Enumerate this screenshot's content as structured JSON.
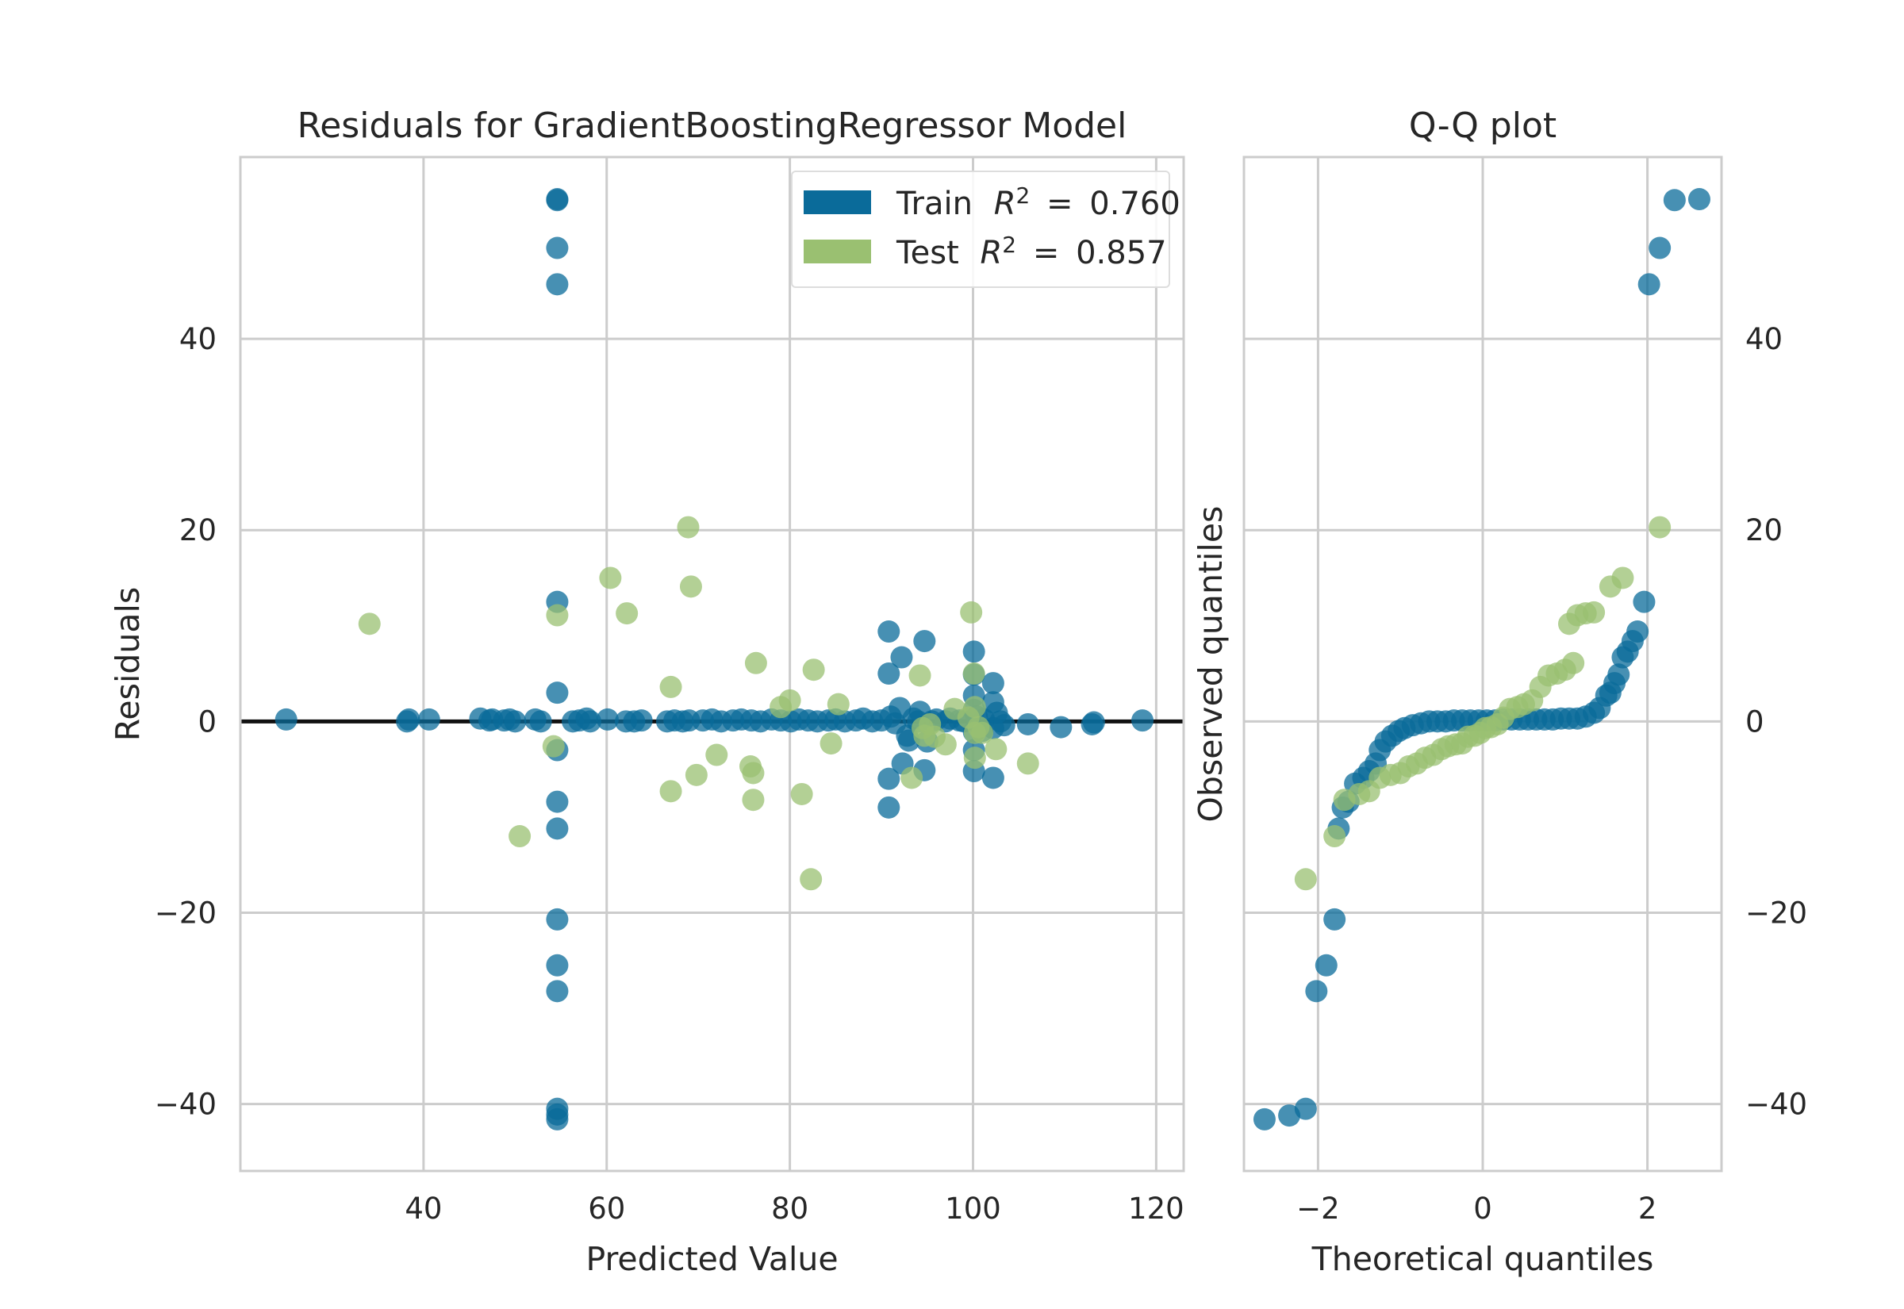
{
  "chart_data": [
    {
      "type": "scatter",
      "title": "Residuals for GradientBoostingRegressor Model",
      "xlabel": "Predicted Value",
      "ylabel": "Residuals",
      "xlim": [
        20,
        123
      ],
      "ylim": [
        -47,
        59
      ],
      "xticks": [
        40,
        60,
        80,
        100,
        120
      ],
      "yticks": [
        -40,
        -20,
        0,
        20,
        40
      ],
      "grid": true,
      "zero_line": 0,
      "legend": {
        "placement": "top-right",
        "entries": [
          {
            "prefix": "Train",
            "r2": "0.760",
            "color": "#0a6b9a"
          },
          {
            "prefix": "Test",
            "r2": "0.857",
            "color": "#9ac071"
          }
        ]
      },
      "series": [
        {
          "name": "Train",
          "color": "#0a6b9a",
          "points": [
            [
              25.0,
              0.2
            ],
            [
              38.2,
              0.0
            ],
            [
              38.4,
              0.2
            ],
            [
              40.6,
              0.2
            ],
            [
              46.2,
              0.3
            ],
            [
              47.2,
              0.1
            ],
            [
              47.5,
              0.2
            ],
            [
              48.8,
              0.1
            ],
            [
              49.4,
              0.2
            ],
            [
              50.0,
              0.0
            ],
            [
              52.2,
              0.2
            ],
            [
              52.8,
              0.0
            ],
            [
              54.6,
              54.5
            ],
            [
              54.6,
              54.6
            ],
            [
              54.6,
              49.5
            ],
            [
              54.6,
              45.7
            ],
            [
              54.6,
              12.5
            ],
            [
              54.6,
              3.0
            ],
            [
              54.6,
              -3.0
            ],
            [
              54.6,
              -8.4
            ],
            [
              54.6,
              -11.2
            ],
            [
              54.6,
              -20.7
            ],
            [
              54.6,
              -25.5
            ],
            [
              54.6,
              -28.2
            ],
            [
              54.6,
              -40.5
            ],
            [
              54.6,
              -41.1
            ],
            [
              54.6,
              -41.6
            ],
            [
              56.3,
              0.0
            ],
            [
              57.0,
              0.1
            ],
            [
              57.8,
              0.3
            ],
            [
              58.2,
              0.0
            ],
            [
              60.1,
              0.2
            ],
            [
              62.1,
              0.0
            ],
            [
              63.0,
              0.0
            ],
            [
              63.8,
              0.1
            ],
            [
              66.6,
              0.0
            ],
            [
              67.4,
              0.1
            ],
            [
              68.3,
              0.0
            ],
            [
              69.0,
              0.1
            ],
            [
              70.5,
              0.1
            ],
            [
              71.5,
              0.2
            ],
            [
              72.5,
              0.0
            ],
            [
              73.8,
              0.1
            ],
            [
              74.7,
              0.2
            ],
            [
              75.8,
              0.1
            ],
            [
              76.8,
              0.0
            ],
            [
              78.0,
              0.2
            ],
            [
              79.0,
              0.1
            ],
            [
              80.1,
              0.0
            ],
            [
              81.0,
              0.2
            ],
            [
              82.0,
              0.1
            ],
            [
              83.0,
              0.0
            ],
            [
              84.2,
              0.1
            ],
            [
              85.0,
              0.2
            ],
            [
              86.0,
              0.0
            ],
            [
              87.2,
              0.1
            ],
            [
              88.0,
              0.3
            ],
            [
              89.0,
              0.0
            ],
            [
              90.0,
              0.1
            ],
            [
              90.8,
              9.4
            ],
            [
              90.8,
              5.0
            ],
            [
              90.8,
              -6.0
            ],
            [
              90.8,
              -9.0
            ],
            [
              91.0,
              0.5
            ],
            [
              91.5,
              -0.2
            ],
            [
              92.0,
              1.4
            ],
            [
              92.2,
              6.7
            ],
            [
              92.3,
              -4.4
            ],
            [
              92.8,
              -1.5
            ],
            [
              93.0,
              -2.0
            ],
            [
              93.5,
              0.3
            ],
            [
              94.0,
              0.0
            ],
            [
              94.2,
              1.0
            ],
            [
              94.7,
              8.4
            ],
            [
              94.7,
              -5.1
            ],
            [
              95.0,
              -2.1
            ],
            [
              95.5,
              0.0
            ],
            [
              96.0,
              0.2
            ],
            [
              97.0,
              0.0
            ],
            [
              97.5,
              0.3
            ],
            [
              98.5,
              0.1
            ],
            [
              99.0,
              0.0
            ],
            [
              100.1,
              7.3
            ],
            [
              100.1,
              4.9
            ],
            [
              100.1,
              2.7
            ],
            [
              100.1,
              1.2
            ],
            [
              100.1,
              -1.1
            ],
            [
              100.1,
              -3.0
            ],
            [
              100.1,
              -5.2
            ],
            [
              100.4,
              0.5
            ],
            [
              101.0,
              -1.0
            ],
            [
              101.2,
              0.2
            ],
            [
              102.2,
              4.0
            ],
            [
              102.2,
              2.0
            ],
            [
              102.2,
              -0.7
            ],
            [
              102.2,
              -5.9
            ],
            [
              102.6,
              0.9
            ],
            [
              103.0,
              0.0
            ],
            [
              103.4,
              -0.4
            ],
            [
              106.0,
              -0.3
            ],
            [
              109.6,
              -0.6
            ],
            [
              113.0,
              -0.3
            ],
            [
              113.2,
              -0.1
            ],
            [
              118.5,
              0.1
            ]
          ]
        },
        {
          "name": "Test",
          "color": "#9ac071",
          "points": [
            [
              34.1,
              10.2
            ],
            [
              50.5,
              -12.0
            ],
            [
              54.2,
              -2.6
            ],
            [
              54.6,
              11.1
            ],
            [
              60.4,
              15.0
            ],
            [
              62.2,
              11.3
            ],
            [
              67.0,
              3.6
            ],
            [
              67.0,
              -7.3
            ],
            [
              68.9,
              20.3
            ],
            [
              69.2,
              14.1
            ],
            [
              69.8,
              -5.6
            ],
            [
              72.0,
              -3.5
            ],
            [
              75.7,
              -4.7
            ],
            [
              76.0,
              -5.4
            ],
            [
              76.0,
              -8.2
            ],
            [
              76.3,
              6.1
            ],
            [
              79.0,
              1.5
            ],
            [
              80.0,
              2.2
            ],
            [
              81.3,
              -7.6
            ],
            [
              82.3,
              -16.5
            ],
            [
              82.6,
              5.4
            ],
            [
              84.5,
              -2.3
            ],
            [
              85.3,
              1.8
            ],
            [
              93.3,
              -5.9
            ],
            [
              94.2,
              4.8
            ],
            [
              94.5,
              -0.7
            ],
            [
              94.7,
              -1.5
            ],
            [
              95.3,
              -0.3
            ],
            [
              95.8,
              -1.6
            ],
            [
              97.0,
              -2.4
            ],
            [
              98.0,
              1.3
            ],
            [
              99.5,
              0.4
            ],
            [
              99.8,
              11.4
            ],
            [
              100.1,
              5.0
            ],
            [
              100.2,
              1.5
            ],
            [
              100.2,
              -1.2
            ],
            [
              100.2,
              -3.8
            ],
            [
              100.6,
              -0.6
            ],
            [
              102.5,
              -2.9
            ],
            [
              106.0,
              -4.4
            ],
            [
              101.0,
              -1.2
            ]
          ]
        }
      ]
    },
    {
      "type": "scatter",
      "title": "Q-Q plot",
      "xlabel": "Theoretical quantiles",
      "ylabel": "Observed quantiles",
      "xlim": [
        -2.9,
        2.9
      ],
      "ylim": [
        -47,
        59
      ],
      "xticks": [
        -2,
        0,
        2
      ],
      "yticks": [
        -40,
        -20,
        0,
        20,
        40
      ],
      "grid": true,
      "series": [
        {
          "name": "Train",
          "color": "#0a6b9a",
          "points": [
            [
              -2.65,
              -41.6
            ],
            [
              -2.35,
              -41.2
            ],
            [
              -2.15,
              -40.5
            ],
            [
              -2.02,
              -28.2
            ],
            [
              -1.9,
              -25.5
            ],
            [
              -1.8,
              -20.7
            ],
            [
              -1.75,
              -11.2
            ],
            [
              -1.7,
              -9.0
            ],
            [
              -1.63,
              -8.4
            ],
            [
              -1.55,
              -6.5
            ],
            [
              -1.45,
              -5.9
            ],
            [
              -1.38,
              -5.2
            ],
            [
              -1.3,
              -4.4
            ],
            [
              -1.25,
              -3.0
            ],
            [
              -1.18,
              -2.1
            ],
            [
              -1.1,
              -1.5
            ],
            [
              -1.02,
              -1.0
            ],
            [
              -0.95,
              -0.7
            ],
            [
              -0.85,
              -0.4
            ],
            [
              -0.75,
              -0.2
            ],
            [
              -0.65,
              0.0
            ],
            [
              -0.55,
              0.0
            ],
            [
              -0.45,
              0.0
            ],
            [
              -0.35,
              0.1
            ],
            [
              -0.25,
              0.1
            ],
            [
              -0.15,
              0.1
            ],
            [
              -0.05,
              0.1
            ],
            [
              0.05,
              0.1
            ],
            [
              0.15,
              0.1
            ],
            [
              0.25,
              0.2
            ],
            [
              0.35,
              0.2
            ],
            [
              0.45,
              0.2
            ],
            [
              0.55,
              0.2
            ],
            [
              0.65,
              0.2
            ],
            [
              0.75,
              0.2
            ],
            [
              0.85,
              0.2
            ],
            [
              0.95,
              0.3
            ],
            [
              1.05,
              0.3
            ],
            [
              1.15,
              0.3
            ],
            [
              1.25,
              0.5
            ],
            [
              1.35,
              0.9
            ],
            [
              1.42,
              1.4
            ],
            [
              1.5,
              2.7
            ],
            [
              1.55,
              3.0
            ],
            [
              1.6,
              4.0
            ],
            [
              1.65,
              4.9
            ],
            [
              1.7,
              6.7
            ],
            [
              1.76,
              7.3
            ],
            [
              1.82,
              8.4
            ],
            [
              1.88,
              9.4
            ],
            [
              1.96,
              12.5
            ],
            [
              2.02,
              45.7
            ],
            [
              2.15,
              49.5
            ],
            [
              2.33,
              54.5
            ],
            [
              2.63,
              54.6
            ]
          ]
        },
        {
          "name": "Test",
          "color": "#9ac071",
          "points": [
            [
              -2.15,
              -16.5
            ],
            [
              -1.8,
              -12.0
            ],
            [
              -1.68,
              -8.2
            ],
            [
              -1.5,
              -7.6
            ],
            [
              -1.38,
              -7.3
            ],
            [
              -1.25,
              -5.9
            ],
            [
              -1.12,
              -5.6
            ],
            [
              -1.0,
              -5.4
            ],
            [
              -0.9,
              -4.7
            ],
            [
              -0.8,
              -4.4
            ],
            [
              -0.7,
              -3.8
            ],
            [
              -0.6,
              -3.5
            ],
            [
              -0.5,
              -2.9
            ],
            [
              -0.42,
              -2.6
            ],
            [
              -0.33,
              -2.4
            ],
            [
              -0.25,
              -2.3
            ],
            [
              -0.18,
              -1.6
            ],
            [
              -0.1,
              -1.5
            ],
            [
              -0.03,
              -1.2
            ],
            [
              0.03,
              -0.7
            ],
            [
              0.1,
              -0.6
            ],
            [
              0.18,
              -0.3
            ],
            [
              0.25,
              0.4
            ],
            [
              0.33,
              1.3
            ],
            [
              0.42,
              1.5
            ],
            [
              0.5,
              1.8
            ],
            [
              0.6,
              2.2
            ],
            [
              0.7,
              3.6
            ],
            [
              0.8,
              4.8
            ],
            [
              0.9,
              5.0
            ],
            [
              1.0,
              5.4
            ],
            [
              1.1,
              6.1
            ],
            [
              1.05,
              10.2
            ],
            [
              1.15,
              11.1
            ],
            [
              1.25,
              11.3
            ],
            [
              1.35,
              11.4
            ],
            [
              1.55,
              14.1
            ],
            [
              1.7,
              15.0
            ],
            [
              2.15,
              20.3
            ]
          ]
        }
      ]
    }
  ]
}
